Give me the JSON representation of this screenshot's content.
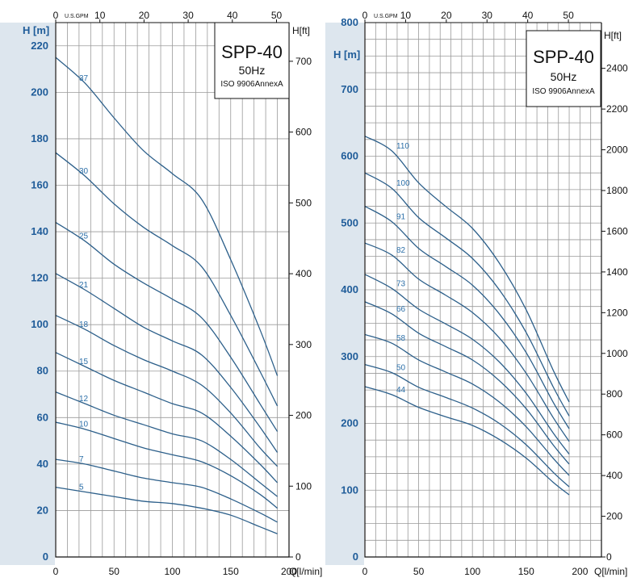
{
  "colors": {
    "curve": "#2c5f8a",
    "grid": "#9a9a9a",
    "axis_band": "#dde6ee",
    "label_blue": "#1f5c99"
  },
  "chart_data": [
    {
      "type": "line",
      "title": "SPP-40",
      "subtitle_freq": "50Hz",
      "subtitle_std": "ISO 9906AnnexA",
      "ylabel_left": "H [m]",
      "ylabel_right": "H[ft]",
      "xlabel_bottom": "Q[l/min]",
      "xlabel_top_unit": "U.S.GPM",
      "xlim": [
        0,
        200
      ],
      "ylim": [
        0,
        230
      ],
      "x_ticks": [
        0,
        50,
        100,
        150,
        200
      ],
      "y_ticks": [
        0,
        20,
        40,
        60,
        80,
        100,
        120,
        140,
        160,
        180,
        200,
        220
      ],
      "right_ticks_ft": [
        0,
        100,
        200,
        300,
        400,
        500,
        600,
        700
      ],
      "top_ticks_gpm": [
        0,
        10,
        20,
        30,
        40,
        50
      ],
      "x": [
        0,
        25,
        50,
        75,
        100,
        125,
        150,
        175,
        190
      ],
      "series": [
        {
          "name": "37",
          "values": [
            215,
            204,
            189,
            175,
            165,
            154,
            128,
            98,
            78
          ]
        },
        {
          "name": "30",
          "values": [
            174,
            164,
            152,
            142,
            134,
            125,
            104,
            80,
            65
          ]
        },
        {
          "name": "25",
          "values": [
            144,
            136,
            126,
            118,
            111,
            103,
            86,
            66,
            54
          ]
        },
        {
          "name": "21",
          "values": [
            122,
            115,
            107,
            99,
            93,
            87,
            73,
            56,
            45
          ]
        },
        {
          "name": "18",
          "values": [
            104,
            98,
            91,
            85,
            80,
            74,
            62,
            47,
            39
          ]
        },
        {
          "name": "15",
          "values": [
            88,
            82,
            76,
            71,
            66,
            62,
            52,
            40,
            32
          ]
        },
        {
          "name": "12",
          "values": [
            71,
            66,
            61,
            57,
            53,
            50,
            42,
            32,
            26
          ]
        },
        {
          "name": "10",
          "values": [
            58,
            55,
            51,
            47,
            44,
            41,
            35,
            27,
            21
          ]
        },
        {
          "name": "7",
          "values": [
            42,
            40,
            37,
            34,
            32,
            30,
            25,
            19,
            15
          ]
        },
        {
          "name": "5",
          "values": [
            30,
            28,
            26,
            24,
            23,
            21,
            18,
            13,
            10
          ]
        }
      ]
    },
    {
      "type": "line",
      "title": "SPP-40",
      "subtitle_freq": "50Hz",
      "subtitle_std": "ISO 9906AnnexA",
      "ylabel_left": "H [m]",
      "ylabel_right": "H[ft]",
      "xlabel_bottom": "Q[l/min]",
      "xlabel_top_unit": "U.S.GPM",
      "xlim": [
        0,
        220
      ],
      "ylim": [
        0,
        800
      ],
      "x_ticks": [
        0,
        50,
        100,
        150,
        200
      ],
      "y_ticks": [
        0,
        100,
        200,
        300,
        400,
        500,
        600,
        700,
        800
      ],
      "right_ticks_ft": [
        0,
        200,
        400,
        600,
        800,
        1000,
        1200,
        1400,
        1600,
        1800,
        2000,
        2200,
        2400
      ],
      "top_ticks_gpm": [
        0,
        10,
        20,
        30,
        40,
        50
      ],
      "x": [
        0,
        25,
        50,
        75,
        100,
        125,
        150,
        175,
        190
      ],
      "series": [
        {
          "name": "110",
          "values": [
            630,
            608,
            560,
            525,
            492,
            440,
            370,
            280,
            232
          ]
        },
        {
          "name": "100",
          "values": [
            575,
            552,
            508,
            478,
            447,
            400,
            336,
            255,
            211
          ]
        },
        {
          "name": "91",
          "values": [
            525,
            502,
            462,
            435,
            407,
            364,
            306,
            232,
            192
          ]
        },
        {
          "name": "82",
          "values": [
            470,
            452,
            416,
            392,
            366,
            328,
            275,
            209,
            173
          ]
        },
        {
          "name": "73",
          "values": [
            423,
            402,
            371,
            349,
            326,
            292,
            245,
            186,
            154
          ]
        },
        {
          "name": "66",
          "values": [
            382,
            364,
            335,
            315,
            295,
            264,
            222,
            168,
            139
          ]
        },
        {
          "name": "58",
          "values": [
            333,
            320,
            295,
            277,
            259,
            232,
            195,
            148,
            122
          ]
        },
        {
          "name": "50",
          "values": [
            288,
            276,
            254,
            239,
            223,
            200,
            168,
            127,
            105
          ]
        },
        {
          "name": "44",
          "values": [
            255,
            243,
            224,
            210,
            197,
            176,
            148,
            112,
            93
          ]
        }
      ]
    }
  ]
}
